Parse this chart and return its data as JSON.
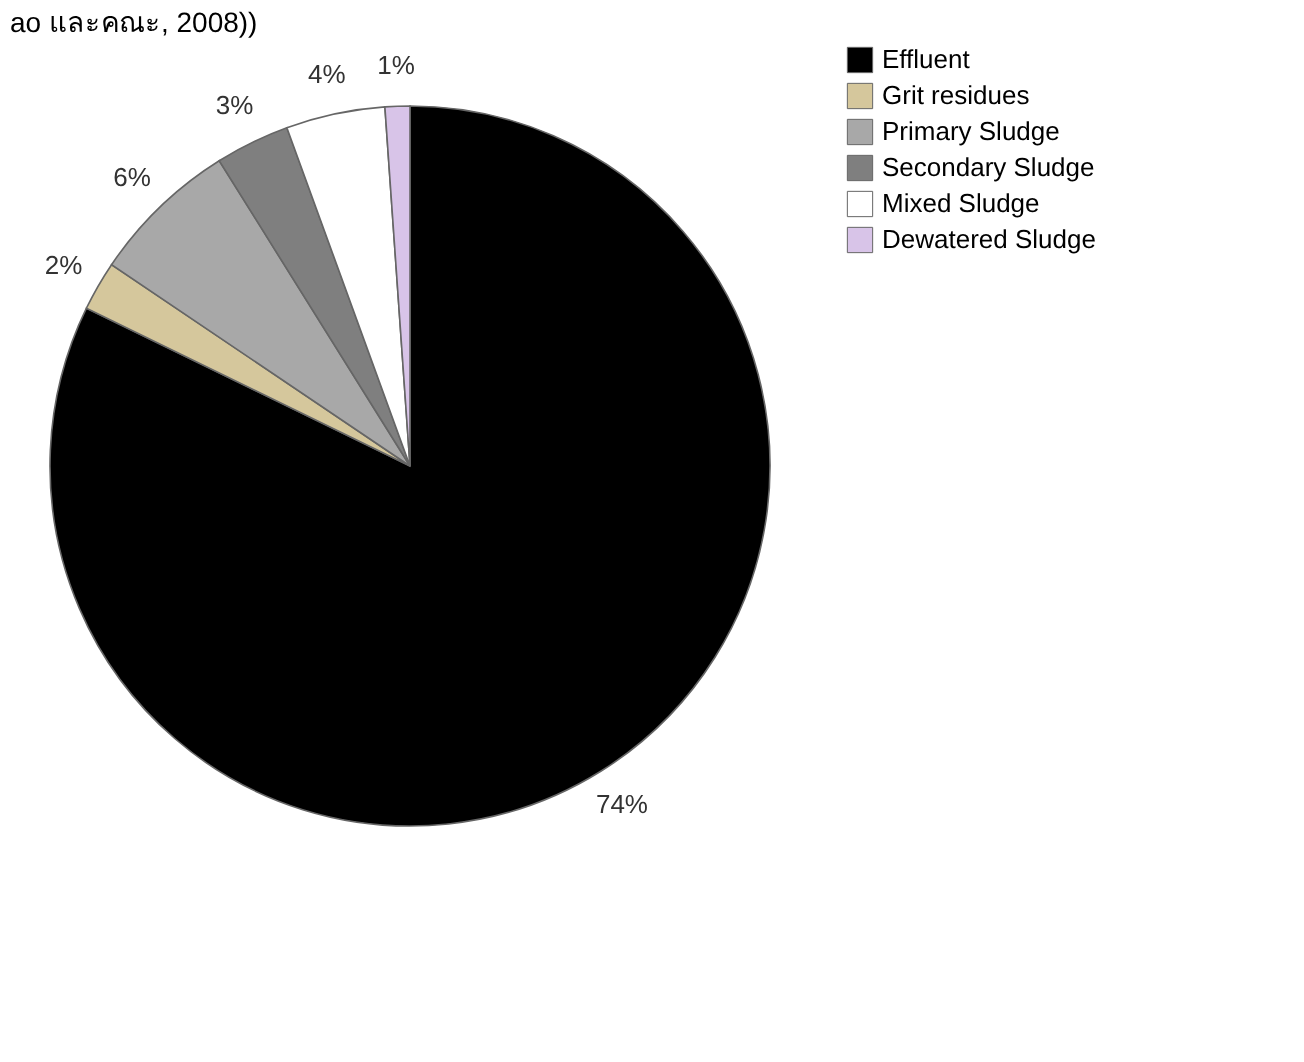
{
  "chart_data": {
    "type": "pie",
    "categories": [
      "Effluent",
      "Grit residues",
      "Primary Sludge",
      "Secondary Sludge",
      "Mixed Sludge",
      "Dewatered Sludge"
    ],
    "values": [
      74,
      2,
      6,
      3,
      4,
      1
    ],
    "colors": [
      "#000000",
      "#d5c79c",
      "#a8a8a8",
      "#7f7f7f",
      "#ffffff",
      "#d8c4e8"
    ],
    "value_labels": [
      "74%",
      "2%",
      "6%",
      "3%",
      "4%",
      "1%"
    ],
    "legend": "right",
    "annotations": [
      "ao และคณะ, 2008))"
    ]
  }
}
